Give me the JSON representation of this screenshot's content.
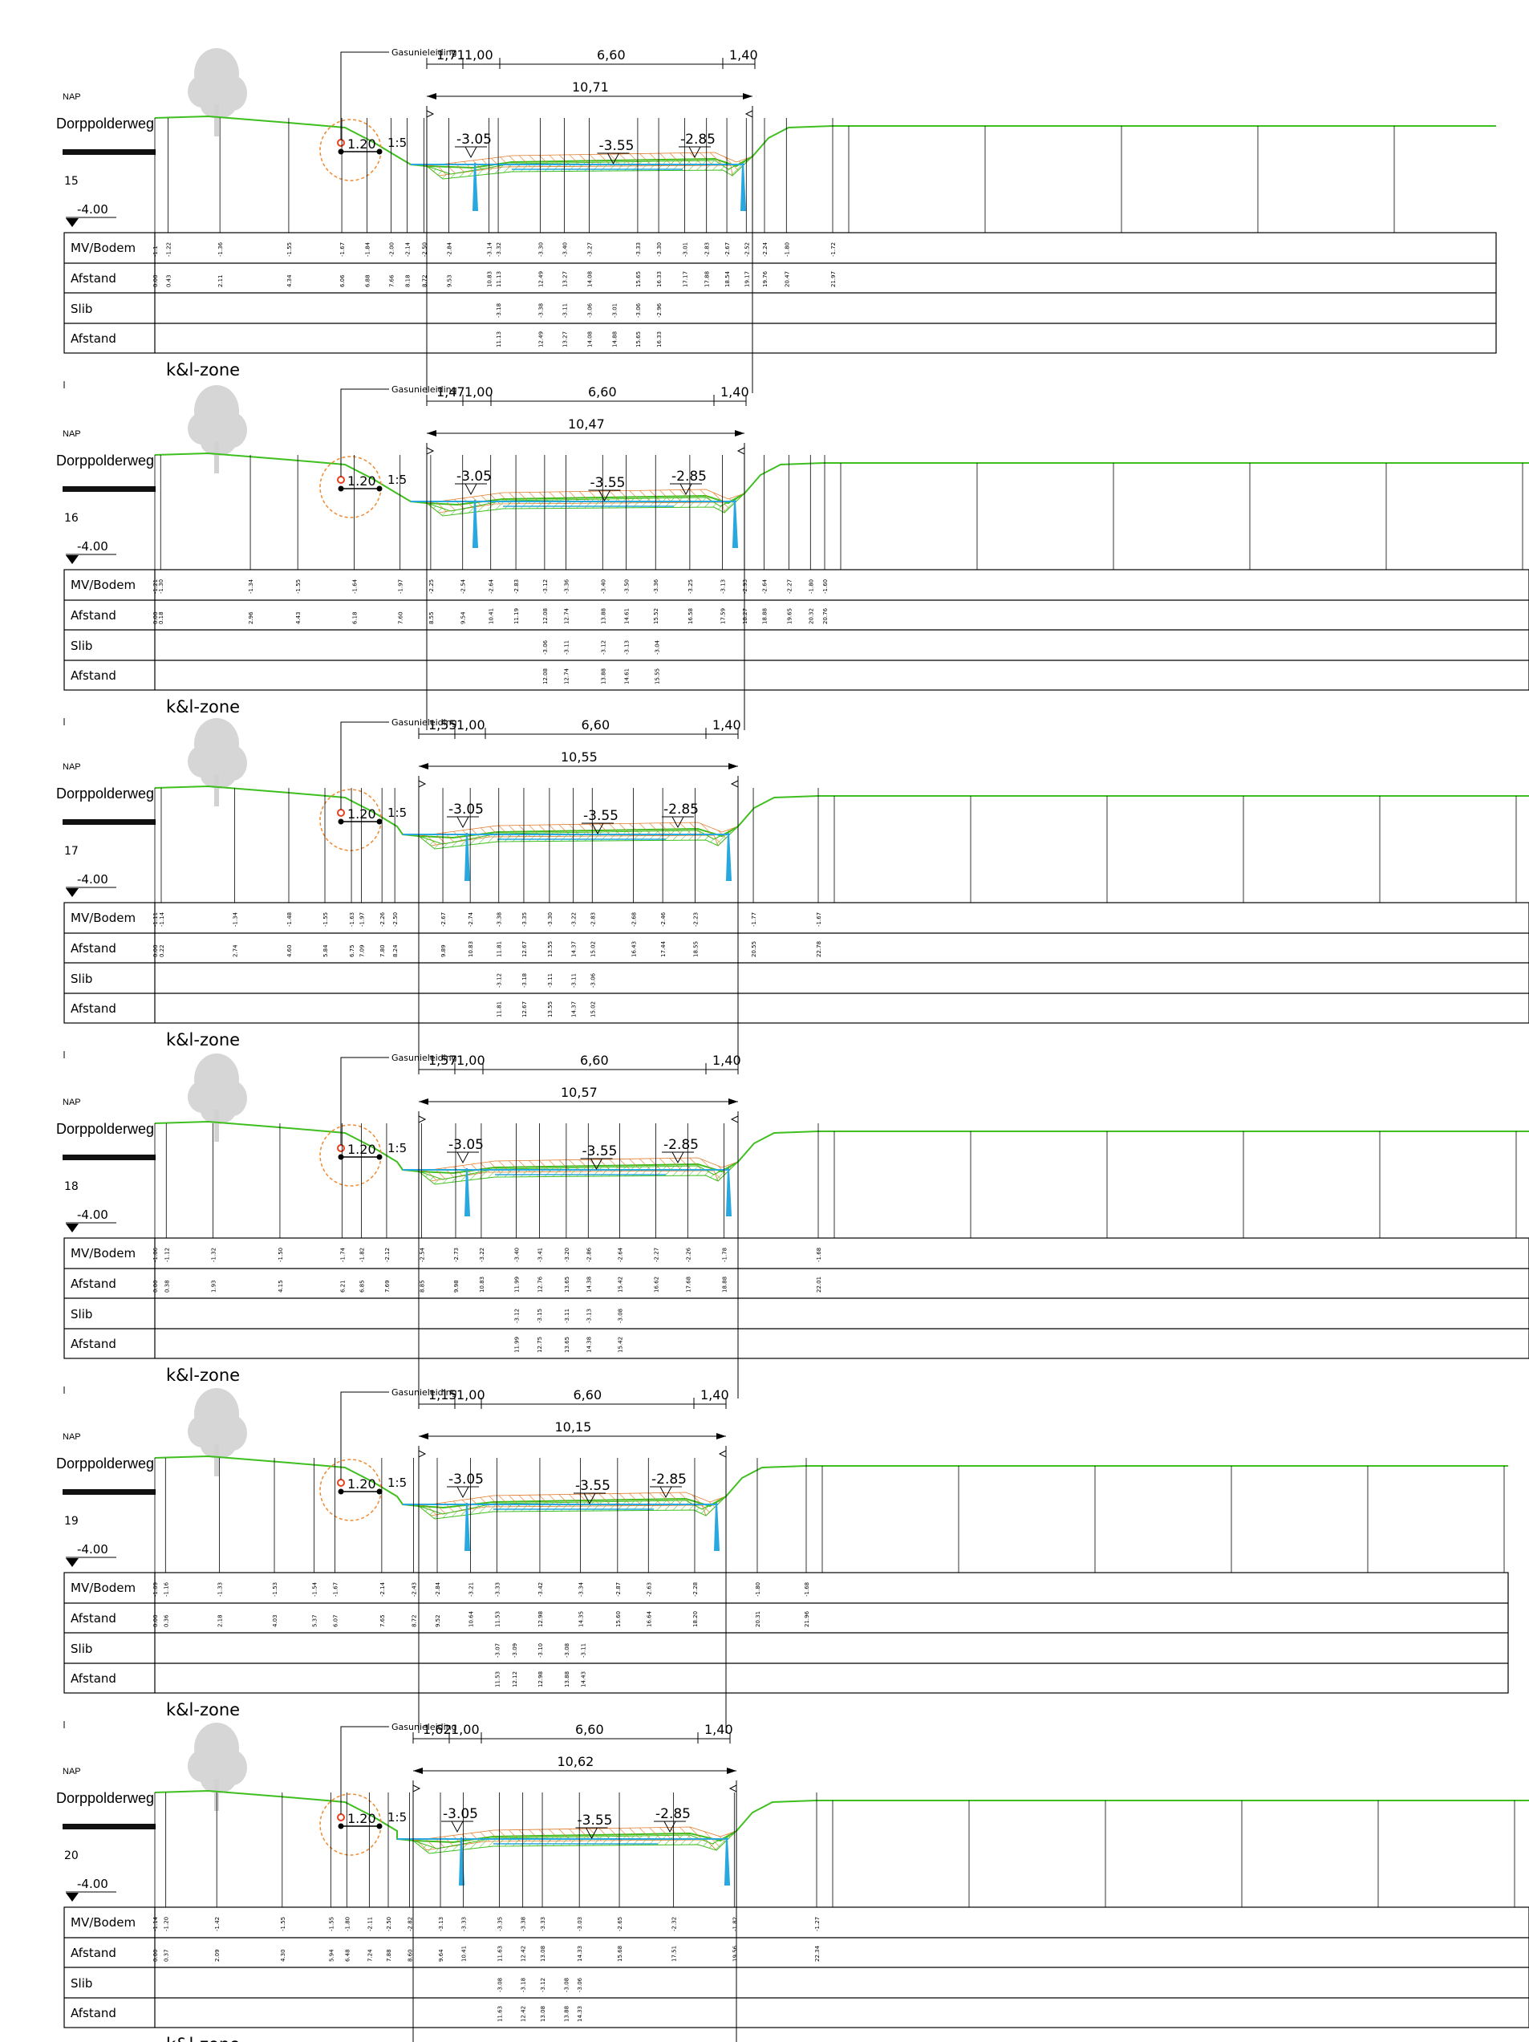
{
  "labels": {
    "nap": "NAP",
    "road": "Dorppolderweg",
    "ref_level": "-4.00",
    "gas_pipe": "Gasunieleiding",
    "pipe_depth": "1.20",
    "slope": "1:5",
    "row_ground": "MV/Bodem",
    "row_distance": "Afstand",
    "row_sludge": "Slib",
    "zone": "k&l-zone"
  },
  "levels": {
    "left": "-3.05",
    "right": "-2.85",
    "bottom": "-3.55"
  },
  "sections": [
    {
      "id": "15",
      "dims": [
        "1,71",
        "1,00",
        "6,60",
        "1,40"
      ],
      "total": "10,71",
      "mv": [
        "-1.1",
        "-1.22",
        "-1.36",
        "-1.55",
        "-1.67",
        "-1.84",
        "-2.00",
        "-2.14",
        "-2.50",
        "-2.84",
        "-3.14",
        "-3.32",
        "-3.30",
        "-3.40",
        "-3.27",
        "-3.33",
        "-3.30",
        "-3.01",
        "-2.83",
        "-2.67",
        "-2.52",
        "-2.24",
        "-1.80",
        "-1.72"
      ],
      "dist": [
        "0.00",
        "0.43",
        "2.11",
        "4.34",
        "6.06",
        "6.88",
        "7.66",
        "8.18",
        "8.72",
        "9.53",
        "10.83",
        "11.13",
        "12.49",
        "13.27",
        "14.08",
        "15.65",
        "16.33",
        "17.17",
        "17.88",
        "18.54",
        "19.17",
        "19.76",
        "20.47",
        "21.97"
      ],
      "slib": [
        "-3.18",
        "-3.38",
        "-3.11",
        "-3.06",
        "-3.01",
        "-3.06",
        "-2.96"
      ],
      "slib_dist": [
        "11.13",
        "12.49",
        "13.27",
        "14.08",
        "14.88",
        "15.65",
        "16.33"
      ]
    },
    {
      "id": "16",
      "dims": [
        "1,47",
        "1,00",
        "6,60",
        "1,40"
      ],
      "total": "10,47",
      "mv": [
        "-1.21",
        "-1.30",
        "-1.34",
        "-1.55",
        "-1.64",
        "-1.97",
        "-2.25",
        "-2.54",
        "-2.64",
        "-2.83",
        "-3.12",
        "-3.36",
        "-3.40",
        "-3.50",
        "-3.36",
        "-3.25",
        "-3.13",
        "-2.93",
        "-2.64",
        "-2.27",
        "-1.80",
        "-1.60"
      ],
      "dist": [
        "0.00",
        "0.18",
        "2.96",
        "4.43",
        "6.18",
        "7.60",
        "8.55",
        "9.54",
        "10.41",
        "11.19",
        "12.08",
        "12.74",
        "13.88",
        "14.61",
        "15.52",
        "16.58",
        "17.59",
        "18.27",
        "18.88",
        "19.65",
        "20.32",
        "20.76"
      ],
      "slib": [
        "-3.06",
        "-3.11",
        "-3.12",
        "-3.13",
        "-3.04"
      ],
      "slib_dist": [
        "12.08",
        "12.74",
        "13.88",
        "14.61",
        "15.55"
      ]
    },
    {
      "id": "17",
      "dims": [
        "1,55",
        "1,00",
        "6,60",
        "1,40"
      ],
      "total": "10,55",
      "mv": [
        "-1.11",
        "-1.14",
        "-1.34",
        "-1.48",
        "-1.55",
        "-1.63",
        "-1.97",
        "-2.26",
        "-2.50",
        "-2.67",
        "-2.74",
        "-3.38",
        "-3.35",
        "-3.30",
        "-3.22",
        "-2.83",
        "-2.68",
        "-2.46",
        "-2.23",
        "-1.77",
        "-1.67"
      ],
      "dist": [
        "0.00",
        "0.22",
        "2.74",
        "4.60",
        "5.84",
        "6.75",
        "7.09",
        "7.80",
        "8.24",
        "9.89",
        "10.83",
        "11.81",
        "12.67",
        "13.55",
        "14.37",
        "15.02",
        "16.43",
        "17.44",
        "18.55",
        "20.55",
        "22.78"
      ],
      "slib": [
        "-3.12",
        "-3.18",
        "-3.11",
        "-3.11",
        "-3.06"
      ],
      "slib_dist": [
        "11.81",
        "12.67",
        "13.55",
        "14.37",
        "15.02"
      ]
    },
    {
      "id": "18",
      "dims": [
        "1,57",
        "1,00",
        "6,60",
        "1,40"
      ],
      "total": "10,57",
      "mv": [
        "-1.06",
        "-1.12",
        "-1.32",
        "-1.50",
        "-1.74",
        "-1.82",
        "-2.12",
        "-2.54",
        "-2.73",
        "-3.22",
        "-3.40",
        "-3.41",
        "-3.20",
        "-2.86",
        "-2.64",
        "-2.27",
        "-2.26",
        "-1.78",
        "-1.68"
      ],
      "dist": [
        "0.00",
        "0.38",
        "1.93",
        "4.15",
        "6.21",
        "6.85",
        "7.69",
        "8.85",
        "9.98",
        "10.83",
        "11.99",
        "12.76",
        "13.65",
        "14.38",
        "15.42",
        "16.62",
        "17.68",
        "18.88",
        "22.01"
      ],
      "slib": [
        "-3.12",
        "-3.15",
        "-3.11",
        "-3.13",
        "-3.08"
      ],
      "slib_dist": [
        "11.99",
        "12.75",
        "13.65",
        "14.38",
        "15.42"
      ]
    },
    {
      "id": "19",
      "dims": [
        "1,15",
        "1,00",
        "6,60",
        "1,40"
      ],
      "total": "10,15",
      "mv": [
        "-1.09",
        "-1.16",
        "-1.33",
        "-1.53",
        "-1.54",
        "-1.67",
        "-2.14",
        "-2.43",
        "-2.84",
        "-3.21",
        "-3.33",
        "-3.42",
        "-3.34",
        "-2.87",
        "-2.63",
        "-2.28",
        "-1.80",
        "-1.68"
      ],
      "dist": [
        "0.00",
        "0.36",
        "2.18",
        "4.03",
        "5.37",
        "6.07",
        "7.65",
        "8.72",
        "9.52",
        "10.64",
        "11.53",
        "12.98",
        "14.35",
        "15.60",
        "16.64",
        "18.20",
        "20.31",
        "21.96"
      ],
      "slib": [
        "-3.07",
        "-3.09",
        "-3.10",
        "-3.08",
        "-3.11"
      ],
      "slib_dist": [
        "11.53",
        "12.12",
        "12.98",
        "13.88",
        "14.43"
      ]
    },
    {
      "id": "20",
      "dims": [
        "1,62",
        "1,00",
        "6,60",
        "1,40"
      ],
      "total": "10,62",
      "mv": [
        "-1.14",
        "-1.20",
        "-1.42",
        "-1.55",
        "-1.55",
        "-1.80",
        "-2.11",
        "-2.50",
        "-2.82",
        "-3.13",
        "-3.33",
        "-3.35",
        "-3.38",
        "-3.33",
        "-3.03",
        "-2.65",
        "-2.32",
        "-1.82",
        "-1.27"
      ],
      "dist": [
        "0.00",
        "0.37",
        "2.09",
        "4.30",
        "5.94",
        "6.48",
        "7.24",
        "7.88",
        "8.60",
        "9.64",
        "10.41",
        "11.63",
        "12.42",
        "13.08",
        "14.33",
        "15.68",
        "17.51",
        "19.56",
        "22.34"
      ],
      "slib": [
        "-3.08",
        "-3.18",
        "-3.12",
        "-3.08",
        "-3.06"
      ],
      "slib_dist": [
        "11.63",
        "12.42",
        "13.08",
        "13.88",
        "14.33"
      ]
    }
  ],
  "colors": {
    "ground": "#3fbf1f",
    "water": "#29a8e0",
    "sludge_hatch": "#e07a2a",
    "hatch_green": "#3fbf1f",
    "pipe_circle": "#f08a30",
    "pipe_marker": "#e8401e",
    "tree": "#d2d2d2",
    "line": "#000000"
  }
}
